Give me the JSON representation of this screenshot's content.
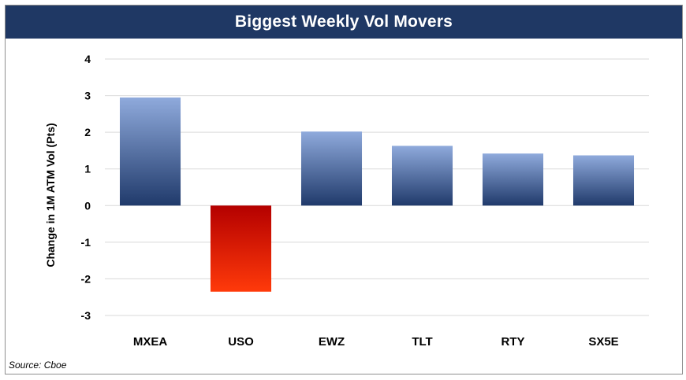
{
  "chart_data": {
    "type": "bar",
    "title": "Biggest Weekly Vol Movers",
    "xlabel": "",
    "ylabel": "Change in 1M ATM Vol (Pts)",
    "categories": [
      "MXEA",
      "USO",
      "EWZ",
      "TLT",
      "RTY",
      "SX5E"
    ],
    "values": [
      2.95,
      -2.35,
      2.02,
      1.63,
      1.42,
      1.37
    ],
    "ylim": [
      -3,
      4
    ],
    "yticks": [
      4,
      3,
      2,
      1,
      0,
      -1,
      -2,
      -3
    ],
    "grid": true,
    "legend": "none",
    "colors": {
      "positive_top": "#8faadc",
      "positive_bottom": "#203a6b",
      "negative_top": "#b40000",
      "negative_bottom": "#ff3a0a",
      "title_bg": "#1f3864",
      "grid": "#d9d9d9"
    }
  },
  "source": "Source: Cboe"
}
